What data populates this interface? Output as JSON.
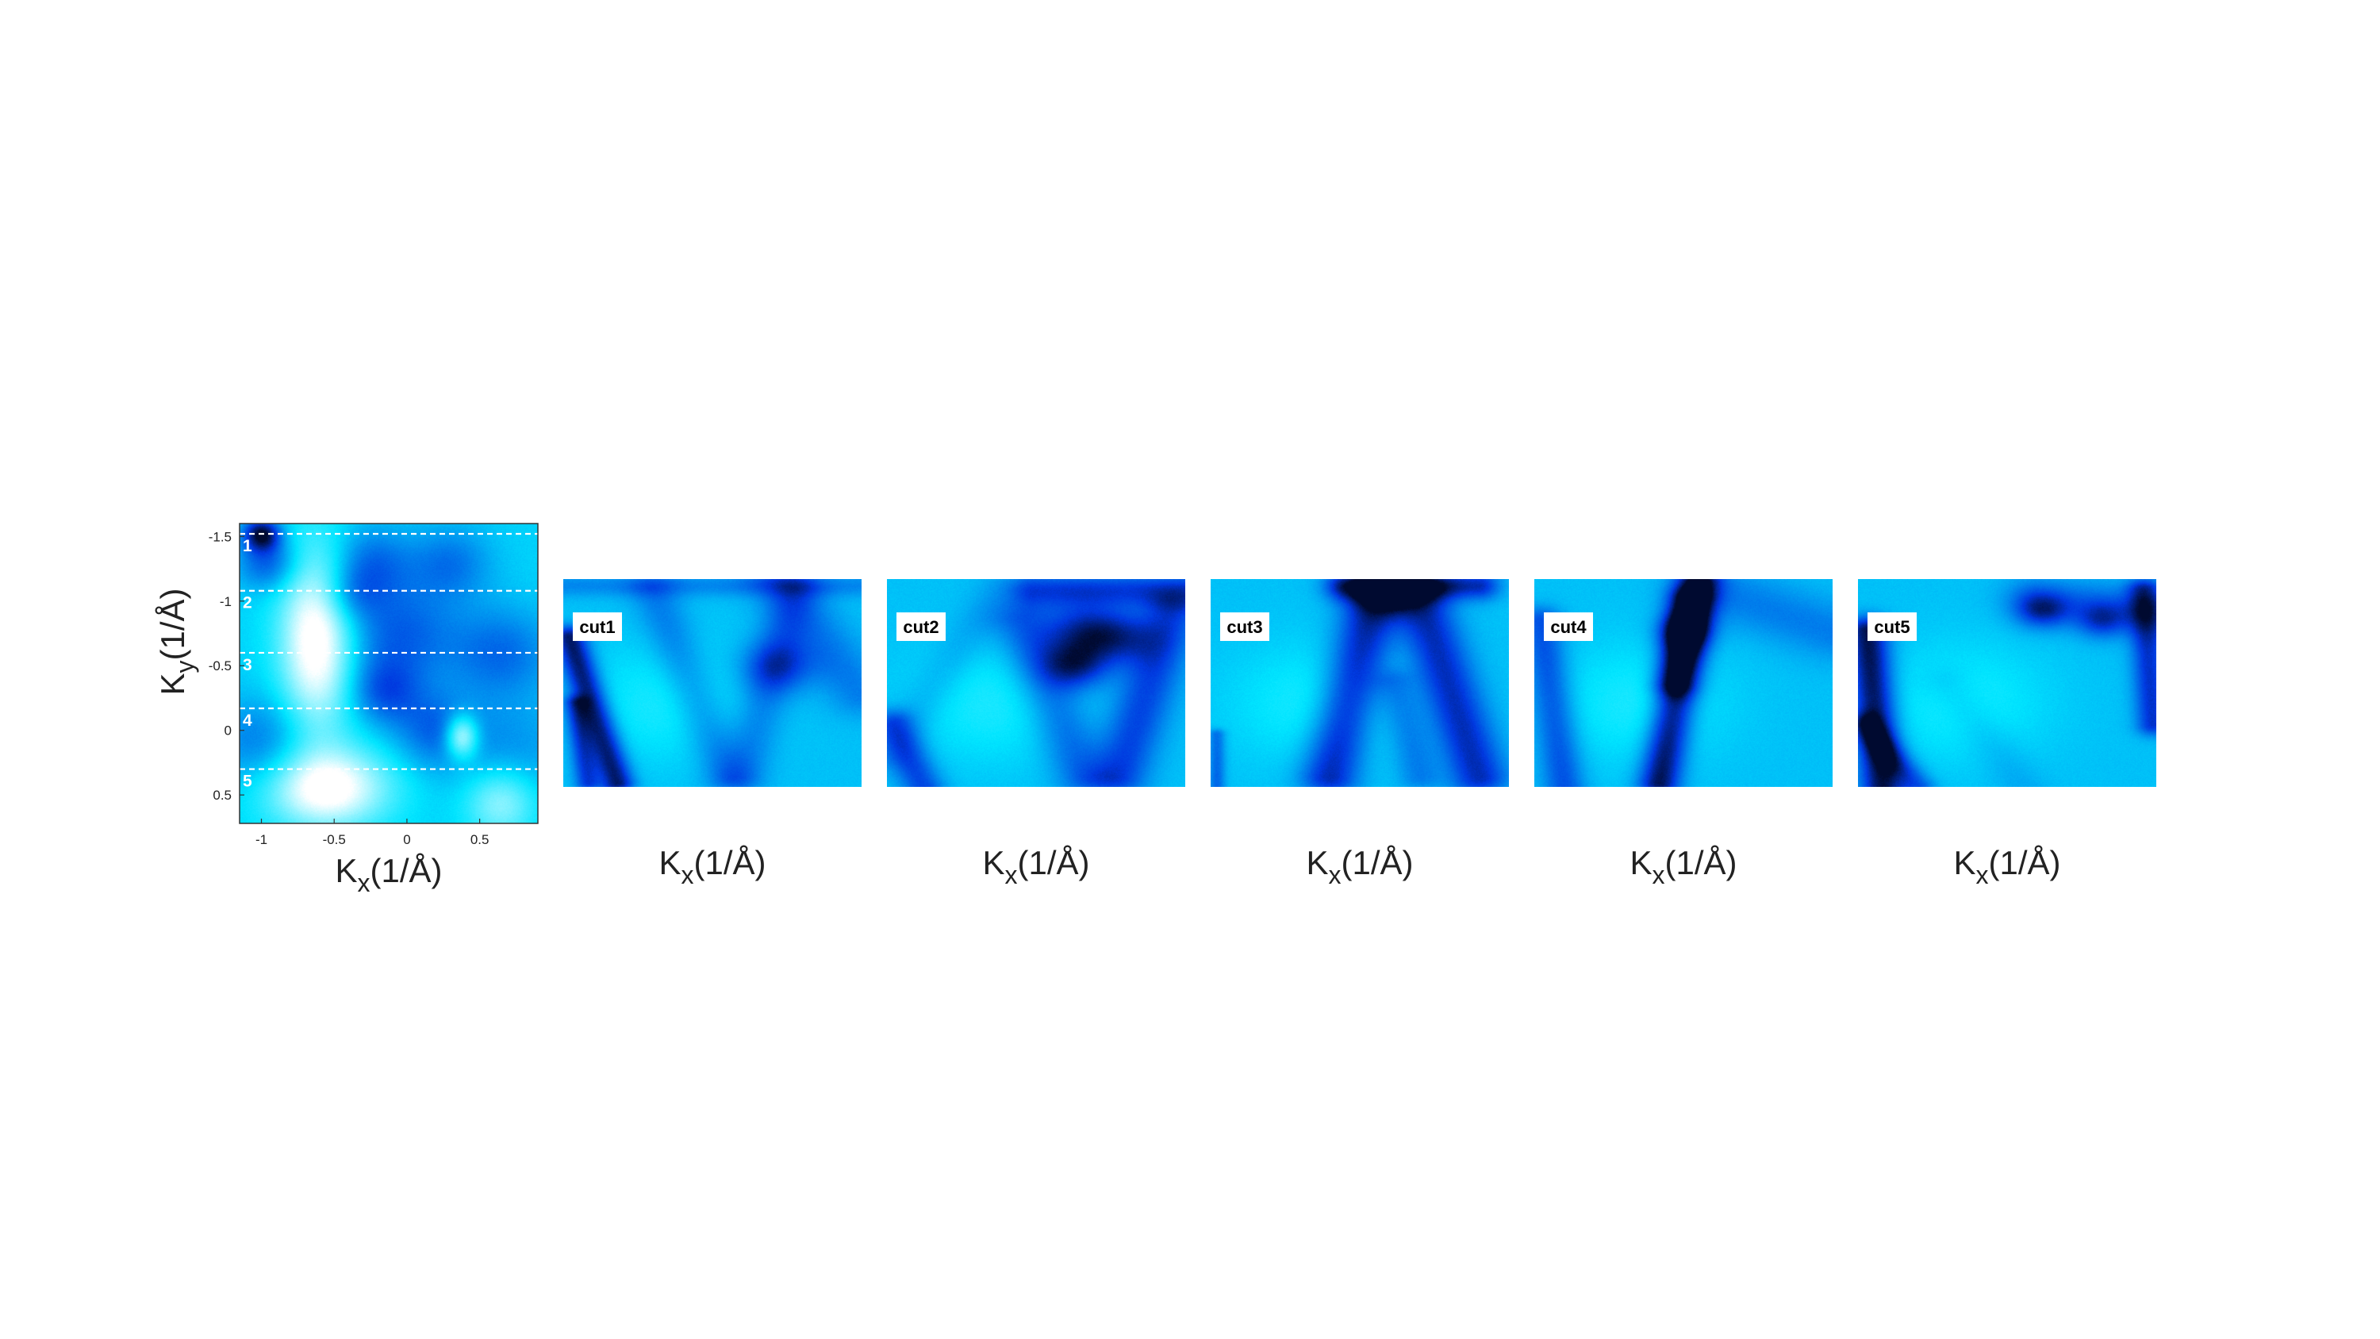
{
  "chart_data": [
    {
      "type": "heatmap",
      "panel": "map",
      "xlabel": "K",
      "xlabel_sub": "x",
      "xlabel_unit": "(1/Å)",
      "ylabel": "K",
      "ylabel_sub": "y",
      "ylabel_unit": "(1/Å)",
      "xlim": [
        -1.15,
        0.9
      ],
      "ylim": [
        -1.6,
        0.72
      ],
      "y_inverted": true,
      "x_ticks": [
        -1,
        -0.5,
        0,
        0.5
      ],
      "x_tick_labels": [
        "-1",
        "-0.5",
        "0",
        "0.5"
      ],
      "y_ticks": [
        -1.5,
        -1,
        -0.5,
        0,
        0.5
      ],
      "y_tick_labels": [
        "-1.5",
        "-1",
        "-0.5",
        "0",
        "0.5"
      ],
      "colormap": [
        "#ffffff",
        "#00e5ff",
        "#0038e0",
        "#000a30"
      ],
      "cut_lines": [
        {
          "label": "1",
          "ky": -1.52
        },
        {
          "label": "2",
          "ky": -1.08
        },
        {
          "label": "3",
          "ky": -0.6
        },
        {
          "label": "4",
          "ky": -0.17
        },
        {
          "label": "5",
          "ky": 0.3
        }
      ],
      "blobs": [
        {
          "x": -1.0,
          "y": -1.52,
          "s": 0.09,
          "a": 1.0
        },
        {
          "x": -0.95,
          "y": -1.3,
          "s": 0.15,
          "a": 0.55
        },
        {
          "x": -0.25,
          "y": -1.3,
          "s": 0.2,
          "a": 0.45
        },
        {
          "x": 0.3,
          "y": -1.3,
          "s": 0.2,
          "a": 0.4
        },
        {
          "x": -0.05,
          "y": -0.75,
          "s": 0.28,
          "a": 0.5
        },
        {
          "x": 0.65,
          "y": -0.6,
          "s": 0.25,
          "a": 0.45
        },
        {
          "x": -0.15,
          "y": -0.3,
          "s": 0.18,
          "a": 0.5
        },
        {
          "x": 0.2,
          "y": 0.0,
          "s": 0.2,
          "a": 0.45
        },
        {
          "x": -1.0,
          "y": 0.1,
          "s": 0.25,
          "a": 0.4
        },
        {
          "x": 0.7,
          "y": 0.2,
          "s": 0.3,
          "a": 0.3
        },
        {
          "x": -0.4,
          "y": -1.05,
          "s": 0.15,
          "a": 0.35
        }
      ],
      "white_regions": [
        {
          "x": -0.62,
          "y": -0.7,
          "sx": 0.18,
          "sy": 0.5,
          "a": 1.0
        },
        {
          "x": -0.55,
          "y": 0.45,
          "sx": 0.3,
          "sy": 0.22,
          "a": 0.95
        },
        {
          "x": 0.38,
          "y": 0.05,
          "sx": 0.08,
          "sy": 0.12,
          "a": 0.9
        },
        {
          "x": 0.65,
          "y": 0.55,
          "sx": 0.18,
          "sy": 0.2,
          "a": 0.6
        }
      ]
    },
    {
      "type": "heatmap",
      "panel": "cut",
      "label": "cut1",
      "xlabel": "K",
      "xlabel_sub": "x",
      "xlabel_unit": "(1/Å)",
      "strokes": [
        {
          "x1": 0.02,
          "y1": 0.28,
          "x2": 0.18,
          "y2": 0.98,
          "w": 0.04,
          "a": 0.9
        },
        {
          "x1": 0.04,
          "y1": 0.6,
          "x2": 0.08,
          "y2": 0.98,
          "w": 0.03,
          "a": 0.6
        },
        {
          "x1": 0.3,
          "y1": 0.05,
          "x2": 0.55,
          "y2": 0.95,
          "w": 0.06,
          "a": 0.3
        },
        {
          "x1": 0.78,
          "y1": 0.05,
          "x2": 0.6,
          "y2": 0.95,
          "w": 0.06,
          "a": 0.3
        },
        {
          "x1": 0.72,
          "y1": 0.0,
          "x2": 1.0,
          "y2": 0.55,
          "w": 0.08,
          "a": 0.3
        },
        {
          "x1": 0.0,
          "y1": 0.03,
          "x2": 1.0,
          "y2": 0.03,
          "w": 0.04,
          "a": 0.25
        }
      ],
      "spots": [
        {
          "x": 0.72,
          "y": 0.42,
          "s": 0.09,
          "a": 0.55
        }
      ]
    },
    {
      "type": "heatmap",
      "panel": "cut",
      "label": "cut2",
      "xlabel": "K",
      "xlabel_sub": "x",
      "xlabel_unit": "(1/Å)",
      "strokes": [
        {
          "x1": 0.0,
          "y1": 0.85,
          "x2": 0.38,
          "y2": 0.05,
          "w": 0.06,
          "a": 0.15
        },
        {
          "x1": 0.02,
          "y1": 0.7,
          "x2": 0.12,
          "y2": 1.0,
          "w": 0.05,
          "a": 0.55
        },
        {
          "x1": 0.45,
          "y1": 0.2,
          "x2": 0.66,
          "y2": 0.95,
          "w": 0.07,
          "a": 0.4
        },
        {
          "x1": 0.96,
          "y1": 0.15,
          "x2": 0.78,
          "y2": 0.95,
          "w": 0.07,
          "a": 0.55
        },
        {
          "x1": 0.5,
          "y1": 0.05,
          "x2": 1.0,
          "y2": 0.05,
          "w": 0.06,
          "a": 0.55
        }
      ],
      "spots": [
        {
          "x": 0.65,
          "y": 0.25,
          "s": 0.1,
          "a": 0.7
        },
        {
          "x": 0.63,
          "y": 0.42,
          "s": 0.08,
          "a": 0.8
        },
        {
          "x": 0.78,
          "y": 0.28,
          "s": 0.09,
          "a": 0.6
        }
      ]
    },
    {
      "type": "heatmap",
      "panel": "cut",
      "label": "cut3",
      "xlabel": "K",
      "xlabel_sub": "x",
      "xlabel_unit": "(1/Å)",
      "strokes": [
        {
          "x1": 0.55,
          "y1": 0.08,
          "x2": 0.4,
          "y2": 0.95,
          "w": 0.07,
          "a": 0.75
        },
        {
          "x1": 0.7,
          "y1": 0.08,
          "x2": 0.9,
          "y2": 0.95,
          "w": 0.07,
          "a": 0.7
        },
        {
          "x1": 0.45,
          "y1": 0.03,
          "x2": 0.9,
          "y2": 0.03,
          "w": 0.05,
          "a": 0.7
        },
        {
          "x1": 0.62,
          "y1": 0.5,
          "x2": 0.7,
          "y2": 0.95,
          "w": 0.05,
          "a": 0.3
        },
        {
          "x1": 0.02,
          "y1": 0.75,
          "x2": 0.02,
          "y2": 1.0,
          "w": 0.02,
          "a": 0.4
        }
      ],
      "spots": [
        {
          "x": 0.6,
          "y": 0.06,
          "s": 0.08,
          "a": 0.6
        }
      ]
    },
    {
      "type": "heatmap",
      "panel": "cut",
      "label": "cut4",
      "xlabel": "K",
      "xlabel_sub": "x",
      "xlabel_unit": "(1/Å)",
      "strokes": [
        {
          "x1": 0.55,
          "y1": 0.02,
          "x2": 0.42,
          "y2": 0.98,
          "w": 0.05,
          "a": 0.95
        },
        {
          "x1": 0.52,
          "y1": 0.1,
          "x2": 0.47,
          "y2": 0.5,
          "w": 0.05,
          "a": 0.6
        },
        {
          "x1": 0.02,
          "y1": 0.2,
          "x2": 0.1,
          "y2": 1.0,
          "w": 0.05,
          "a": 0.5
        },
        {
          "x1": 0.6,
          "y1": 0.05,
          "x2": 1.0,
          "y2": 0.25,
          "w": 0.1,
          "a": 0.3
        }
      ],
      "spots": [
        {
          "x": 0.5,
          "y": 0.25,
          "s": 0.06,
          "a": 0.6
        }
      ]
    },
    {
      "type": "heatmap",
      "panel": "cut",
      "label": "cut5",
      "xlabel": "K",
      "xlabel_sub": "x",
      "xlabel_unit": "(1/Å)",
      "strokes": [
        {
          "x1": 0.03,
          "y1": 0.25,
          "x2": 0.08,
          "y2": 1.0,
          "w": 0.05,
          "a": 0.95
        },
        {
          "x1": 0.02,
          "y1": 0.7,
          "x2": 0.2,
          "y2": 1.0,
          "w": 0.04,
          "a": 0.5
        },
        {
          "x1": 0.6,
          "y1": 0.1,
          "x2": 1.0,
          "y2": 0.15,
          "w": 0.08,
          "a": 0.4
        },
        {
          "x1": 0.96,
          "y1": 0.05,
          "x2": 0.99,
          "y2": 0.7,
          "w": 0.04,
          "a": 0.65
        },
        {
          "x1": 0.3,
          "y1": 0.5,
          "x2": 0.55,
          "y2": 1.0,
          "w": 0.06,
          "a": 0.12
        }
      ],
      "spots": [
        {
          "x": 0.62,
          "y": 0.15,
          "s": 0.06,
          "a": 0.6
        },
        {
          "x": 0.82,
          "y": 0.2,
          "s": 0.06,
          "a": 0.55
        }
      ]
    }
  ]
}
